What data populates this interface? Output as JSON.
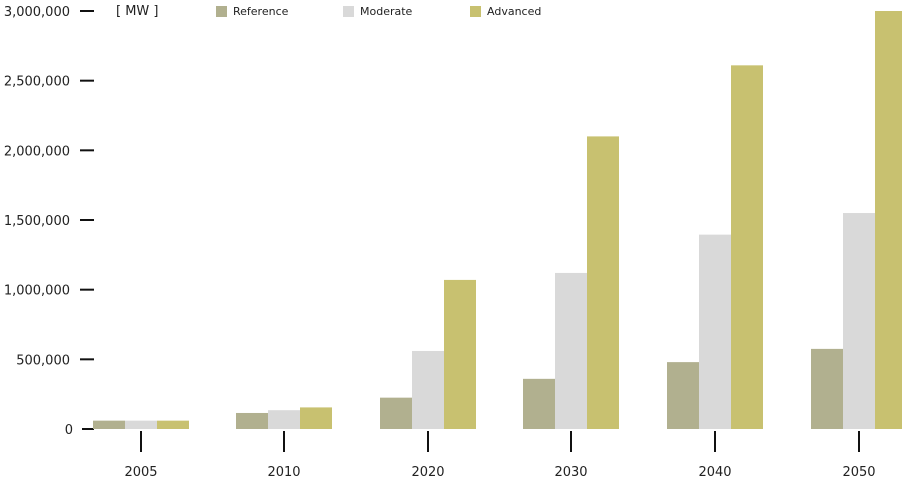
{
  "chart_data": {
    "type": "bar",
    "unit_label": "[ MW ]",
    "categories": [
      "2005",
      "2010",
      "2020",
      "2030",
      "2040",
      "2050"
    ],
    "series": [
      {
        "name": "Reference",
        "color": "#b1b08f",
        "values": [
          60000,
          115000,
          225000,
          360000,
          480000,
          575000
        ]
      },
      {
        "name": "Moderate",
        "color": "#d9d9d9",
        "values": [
          60000,
          135000,
          560000,
          1120000,
          1395000,
          1550000
        ]
      },
      {
        "name": "Advanced",
        "color": "#c8c170",
        "values": [
          60000,
          155000,
          1070000,
          2100000,
          2610000,
          3000000
        ]
      }
    ],
    "y_ticks": [
      "0",
      "500,000",
      "1,000,000",
      "1,500,000",
      "2,000,000",
      "2,500,000",
      "3,000,000"
    ],
    "ylim": [
      0,
      3000000
    ],
    "legend_position": "top",
    "grid": false
  }
}
